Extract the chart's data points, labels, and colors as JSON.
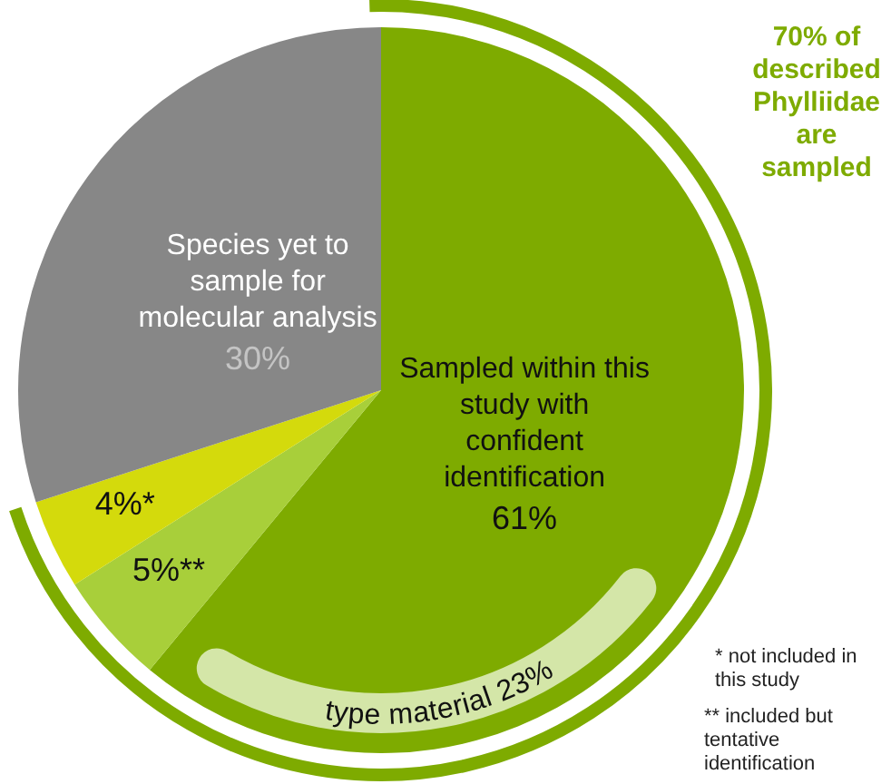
{
  "chart_data": {
    "type": "pie",
    "categories": [
      "Sampled within this study with confident identification",
      null,
      null,
      "Species yet to sample for molecular analysis"
    ],
    "values": [
      61,
      5,
      4,
      30
    ],
    "colors": [
      "#7eab00",
      "#a8cf3a",
      "#d4da0c",
      "#878787"
    ],
    "value_labels": [
      "61%",
      "5%**",
      "4%*",
      "30%"
    ],
    "legend": false,
    "annotations": [
      "70% of described Phylliidae are sampled",
      "type material 23%",
      "* not included in this study",
      "** included but tentative identification"
    ]
  }
}
